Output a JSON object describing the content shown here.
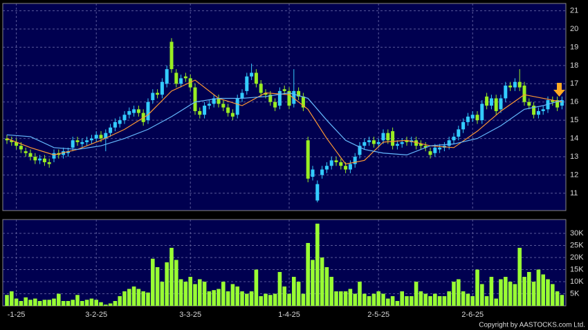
{
  "chart_data": {
    "type": "candlestick",
    "xticks": [
      {
        "value": 2,
        "label": "-1-25"
      },
      {
        "value": 19,
        "label": "3-2-25"
      },
      {
        "value": 39,
        "label": "3-3-25"
      },
      {
        "value": 60,
        "label": "1-4-25"
      },
      {
        "value": 79,
        "label": "2-5-25"
      },
      {
        "value": 99,
        "label": "2-6-25"
      }
    ],
    "ylim": [
      10.05,
      21.4
    ],
    "yticks": [
      11,
      12,
      13,
      14,
      15,
      16,
      17,
      18,
      19,
      20,
      21
    ],
    "up_color": "#33ccff",
    "down_color": "#99ee22",
    "open": [
      14.0,
      13.9,
      13.8,
      13.6,
      13.3,
      13.2,
      13.0,
      12.8,
      12.9,
      12.7,
      12.9,
      13.2,
      13.1,
      13.2,
      13.5,
      13.9,
      13.7,
      13.8,
      13.9,
      14.0,
      14.2,
      14.0,
      14.3,
      14.6,
      14.8,
      15.0,
      15.3,
      15.4,
      15.6,
      15.4,
      15.0,
      16.1,
      16.5,
      16.4,
      17.0,
      19.3,
      17.6,
      17.0,
      17.4,
      17.3,
      16.8,
      15.5,
      15.3,
      15.8,
      15.9,
      16.2,
      15.9,
      15.7,
      15.4,
      15.3,
      16.2,
      16.6,
      17.4,
      17.6,
      17.0,
      16.5,
      16.4,
      16.0,
      15.8,
      16.7,
      16.6,
      15.9,
      16.6,
      16.3,
      13.9,
      11.9,
      10.6,
      12.0,
      12.3,
      12.5,
      12.8,
      12.7,
      12.5,
      12.3,
      12.6,
      13.1,
      13.6,
      13.8,
      13.9,
      13.7,
      13.9,
      14.3,
      14.4,
      13.6,
      13.7,
      13.9,
      13.8,
      13.9,
      13.7,
      13.6,
      13.3,
      13.2,
      13.4,
      13.5,
      13.6,
      13.9,
      14.1,
      14.5,
      14.9,
      15.1,
      15.3,
      15.0,
      16.3,
      15.8,
      16.2,
      15.6,
      16.2,
      16.9,
      16.8,
      17.1,
      16.9,
      16.0,
      15.8,
      15.3,
      15.5,
      15.6,
      16.1,
      16.1,
      15.8
    ],
    "high": [
      14.2,
      14.1,
      14.0,
      13.8,
      13.5,
      13.4,
      13.2,
      13.1,
      13.1,
      12.9,
      13.4,
      13.4,
      13.5,
      13.5,
      14.1,
      14.1,
      14.0,
      14.1,
      14.2,
      14.4,
      14.4,
      14.5,
      14.8,
      15.1,
      15.2,
      15.5,
      15.7,
      15.8,
      15.8,
      15.6,
      16.2,
      16.7,
      16.7,
      17.3,
      18.0,
      19.5,
      17.8,
      17.5,
      17.6,
      17.5,
      17.0,
      15.7,
      16.0,
      16.1,
      16.4,
      16.4,
      16.1,
      15.9,
      15.6,
      16.4,
      16.7,
      17.6,
      18.1,
      17.8,
      17.2,
      16.7,
      16.6,
      16.2,
      16.8,
      16.9,
      16.8,
      17.8,
      16.8,
      16.5,
      14.1,
      12.5,
      11.7,
      12.5,
      12.7,
      13.0,
      13.0,
      12.9,
      12.7,
      12.8,
      13.2,
      13.8,
      14.0,
      14.1,
      14.1,
      14.0,
      14.5,
      14.5,
      14.6,
      13.9,
      14.0,
      14.1,
      14.1,
      14.1,
      13.9,
      13.8,
      13.5,
      13.7,
      13.7,
      13.8,
      14.1,
      14.3,
      14.7,
      15.1,
      15.4,
      15.5,
      15.5,
      16.1,
      16.5,
      16.4,
      16.4,
      16.4,
      17.1,
      17.1,
      17.3,
      17.8,
      17.1,
      16.2,
      16.0,
      15.7,
      15.8,
      16.3,
      16.3,
      16.3,
      16.3
    ],
    "low": [
      13.7,
      13.6,
      13.4,
      13.2,
      13.0,
      12.8,
      12.6,
      12.6,
      12.5,
      12.4,
      12.7,
      12.9,
      12.9,
      13.0,
      13.3,
      13.6,
      13.5,
      13.6,
      13.7,
      13.8,
      13.8,
      13.3,
      14.1,
      14.4,
      14.6,
      14.8,
      15.1,
      15.2,
      15.2,
      14.7,
      14.8,
      15.9,
      16.2,
      16.2,
      16.8,
      17.6,
      16.8,
      16.8,
      17.1,
      16.6,
      15.3,
      15.1,
      15.1,
      15.6,
      15.7,
      15.7,
      15.5,
      15.2,
      15.0,
      15.1,
      16.0,
      16.4,
      17.2,
      16.8,
      16.3,
      16.2,
      15.8,
      15.5,
      15.6,
      16.4,
      15.6,
      15.7,
      16.1,
      15.5,
      11.6,
      11.7,
      10.5,
      11.8,
      12.1,
      12.3,
      12.5,
      12.3,
      12.1,
      12.1,
      12.4,
      12.9,
      13.4,
      13.6,
      13.5,
      13.5,
      13.7,
      13.7,
      13.4,
      13.4,
      13.5,
      13.6,
      13.6,
      13.4,
      13.4,
      13.3,
      12.9,
      13.0,
      13.2,
      13.3,
      13.4,
      13.7,
      13.9,
      14.3,
      14.7,
      14.9,
      14.8,
      14.8,
      15.6,
      15.6,
      15.3,
      15.4,
      16.0,
      16.6,
      16.6,
      16.6,
      15.8,
      15.6,
      15.1,
      15.1,
      15.3,
      15.4,
      15.8,
      15.5,
      15.6
    ],
    "close": [
      13.9,
      13.8,
      13.6,
      13.4,
      13.2,
      13.0,
      12.8,
      12.9,
      12.7,
      12.6,
      13.2,
      13.1,
      13.3,
      13.3,
      13.9,
      13.8,
      13.8,
      13.9,
      14.0,
      14.2,
      14.0,
      14.3,
      14.6,
      14.9,
      15.0,
      15.3,
      15.5,
      15.6,
      15.4,
      14.9,
      16.0,
      16.5,
      16.4,
      17.1,
      17.8,
      17.8,
      17.0,
      17.3,
      17.3,
      16.8,
      15.5,
      15.3,
      15.8,
      15.9,
      16.2,
      15.9,
      15.7,
      15.4,
      15.2,
      16.2,
      16.5,
      17.4,
      17.6,
      17.0,
      16.5,
      16.4,
      16.0,
      15.7,
      16.6,
      16.6,
      15.8,
      16.6,
      16.3,
      15.7,
      11.8,
      12.3,
      11.5,
      12.3,
      12.5,
      12.8,
      12.7,
      12.5,
      12.3,
      12.6,
      13.0,
      13.6,
      13.8,
      13.9,
      13.7,
      13.8,
      14.3,
      13.9,
      13.6,
      13.7,
      13.8,
      13.8,
      13.9,
      13.6,
      13.6,
      13.5,
      13.1,
      13.5,
      13.5,
      13.6,
      13.9,
      14.1,
      14.5,
      14.9,
      15.2,
      15.3,
      15.0,
      15.9,
      15.8,
      16.2,
      15.5,
      16.2,
      16.9,
      16.8,
      17.1,
      16.8,
      16.0,
      15.8,
      15.3,
      15.5,
      15.6,
      16.1,
      16.0,
      15.7,
      16.1
    ],
    "moving_averages": [
      {
        "color": "#ff9933",
        "x": [
          0,
          5,
          10,
          15,
          20,
          25,
          30,
          35,
          40,
          45,
          50,
          55,
          60,
          64,
          68,
          72,
          76,
          80,
          85,
          90,
          95,
          100,
          105,
          110,
          114,
          118
        ],
        "values": [
          14.0,
          13.5,
          13.1,
          13.4,
          13.9,
          14.5,
          15.3,
          16.6,
          17.2,
          16.2,
          15.8,
          16.5,
          16.4,
          15.6,
          14.0,
          12.6,
          12.8,
          13.8,
          13.9,
          13.6,
          13.5,
          14.4,
          15.5,
          16.4,
          16.2,
          16.0
        ]
      },
      {
        "color": "#66bbff",
        "x": [
          0,
          5,
          10,
          15,
          20,
          25,
          30,
          35,
          40,
          45,
          50,
          55,
          60,
          64,
          68,
          72,
          76,
          80,
          85,
          90,
          95,
          100,
          105,
          110,
          114,
          118
        ],
        "values": [
          14.2,
          14.1,
          13.5,
          13.4,
          13.6,
          14.0,
          14.5,
          15.2,
          16.0,
          16.2,
          16.2,
          16.3,
          16.5,
          16.2,
          15.0,
          13.9,
          13.4,
          13.2,
          13.1,
          13.6,
          13.7,
          14.0,
          14.7,
          15.6,
          15.8,
          16.1
        ]
      }
    ],
    "volume_color": "#99ff33",
    "volume": [
      4500,
      6000,
      3000,
      2000,
      3500,
      2500,
      3000,
      2000,
      2500,
      2500,
      3000,
      5000,
      2000,
      2000,
      2500,
      4500,
      2000,
      2500,
      3000,
      2500,
      1500,
      500,
      1000,
      2000,
      4000,
      6000,
      7000,
      8000,
      7000,
      6000,
      5500,
      19500,
      16000,
      10000,
      18000,
      24000,
      19000,
      11000,
      10000,
      12000,
      9000,
      11000,
      10000,
      6000,
      6500,
      7000,
      10000,
      6000,
      9000,
      8000,
      6000,
      5000,
      6000,
      15000,
      4000,
      5000,
      4500,
      5000,
      14000,
      8000,
      5000,
      12000,
      10000,
      5000,
      26000,
      19000,
      34000,
      20000,
      16000,
      12000,
      6000,
      6000,
      6000,
      7000,
      5000,
      10000,
      5000,
      4000,
      5000,
      6000,
      5000,
      3000,
      4000,
      2000,
      6000,
      4000,
      4000,
      10000,
      6000,
      5000,
      4000,
      5000,
      4000,
      4000,
      6000,
      10000,
      11000,
      6000,
      5000,
      4000,
      15000,
      9000,
      4000,
      12000,
      3000,
      11000,
      12000,
      10000,
      9000,
      24000,
      12000,
      14000,
      10000,
      15000,
      13000,
      11000,
      9000,
      6000,
      4500
    ],
    "vlim": [
      0,
      35700
    ],
    "vticks": [
      {
        "value": 5000,
        "label": "5K"
      },
      {
        "value": 10000,
        "label": "10K"
      },
      {
        "value": 15000,
        "label": "15K"
      },
      {
        "value": 20000,
        "label": "20K"
      },
      {
        "value": 25000,
        "label": "25K"
      },
      {
        "value": 30000,
        "label": "30K"
      }
    ],
    "grid": true,
    "copyright": "Copyright by AASTOCKS.com Ltd."
  }
}
